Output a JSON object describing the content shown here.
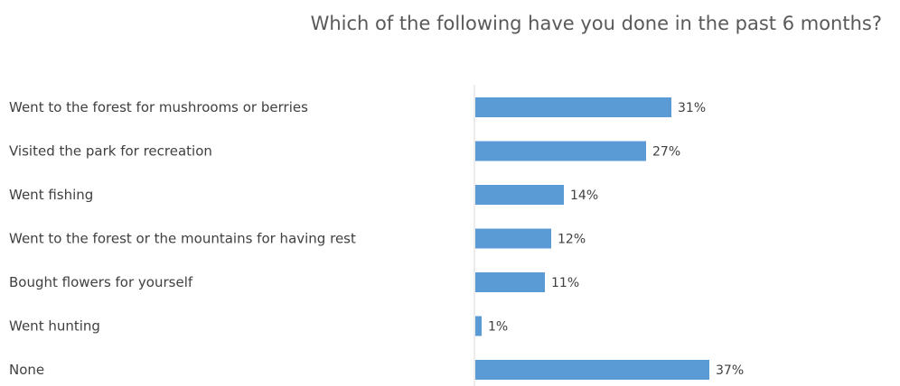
{
  "chart_data": {
    "type": "bar",
    "orientation": "horizontal",
    "title": "Which of the following have you done in the past 6 months?",
    "categories": [
      "Went to the forest for mushrooms or berries",
      "Visited the park for recreation",
      "Went fishing",
      "Went to the forest or the mountains for having rest",
      "Bought flowers for yourself",
      "Went hunting",
      "None"
    ],
    "values": [
      31,
      27,
      14,
      12,
      11,
      1,
      37
    ],
    "value_labels": [
      "31%",
      "27%",
      "14%",
      "12%",
      "11%",
      "1%",
      "37%"
    ],
    "unit": "%",
    "xlim": [
      0,
      100
    ],
    "grid": false,
    "legend": "none",
    "bar_color": "#5b9bd5",
    "axis_color": "#d9d9d9"
  }
}
